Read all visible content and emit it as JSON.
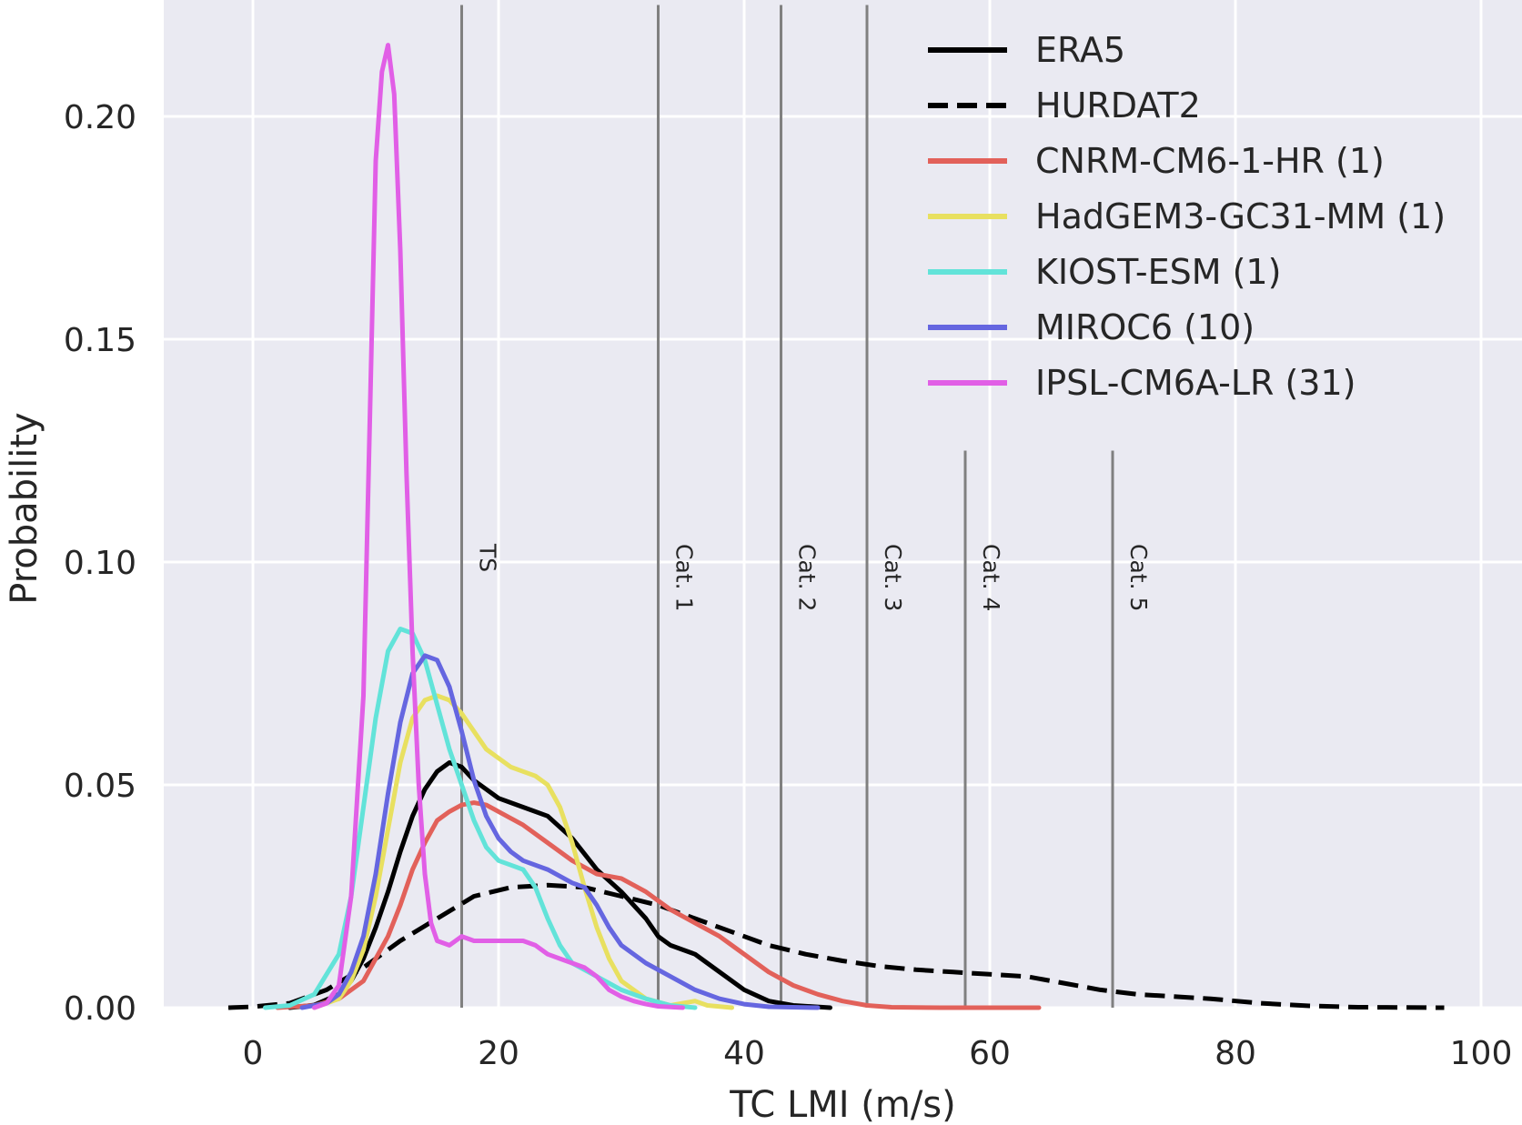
{
  "chart_data": {
    "type": "line",
    "title": "",
    "xlabel": "TC LMI (m/s)",
    "ylabel": "Probability",
    "xlim": [
      -7,
      102
    ],
    "ylim": [
      0,
      0.225
    ],
    "xticks": [
      0,
      20,
      40,
      60,
      80,
      100
    ],
    "xtick_labels": [
      "0",
      "20",
      "40",
      "60",
      "80",
      "100"
    ],
    "yticks": [
      0,
      0.05,
      0.1,
      0.15,
      0.2
    ],
    "ytick_labels": [
      "0.00",
      "0.05",
      "0.10",
      "0.15",
      "0.20"
    ],
    "grid": true,
    "legend_position": "top-right",
    "background": "#eaeaf2",
    "category_lines": [
      {
        "label": "TS",
        "x": 17,
        "top": 0.225
      },
      {
        "label": "Cat. 1",
        "x": 33,
        "top": 0.225
      },
      {
        "label": "Cat. 2",
        "x": 43,
        "top": 0.225
      },
      {
        "label": "Cat. 3",
        "x": 50,
        "top": 0.225
      },
      {
        "label": "Cat. 4",
        "x": 58,
        "top": 0.125
      },
      {
        "label": "Cat. 5",
        "x": 70,
        "top": 0.125
      }
    ],
    "category_line_color": "#808080",
    "series": [
      {
        "name": "ERA5",
        "color": "#000000",
        "dash": "solid",
        "points": [
          [
            3,
            0
          ],
          [
            5,
            0.0006
          ],
          [
            7,
            0.003
          ],
          [
            8,
            0.006
          ],
          [
            9,
            0.011
          ],
          [
            10,
            0.018
          ],
          [
            11,
            0.026
          ],
          [
            12,
            0.035
          ],
          [
            13,
            0.043
          ],
          [
            14,
            0.049
          ],
          [
            15,
            0.053
          ],
          [
            16,
            0.055
          ],
          [
            17,
            0.054
          ],
          [
            18,
            0.051
          ],
          [
            19,
            0.049
          ],
          [
            20,
            0.047
          ],
          [
            22,
            0.045
          ],
          [
            24,
            0.043
          ],
          [
            26,
            0.038
          ],
          [
            28,
            0.031
          ],
          [
            30,
            0.026
          ],
          [
            32,
            0.02
          ],
          [
            33,
            0.016
          ],
          [
            34,
            0.014
          ],
          [
            36,
            0.012
          ],
          [
            38,
            0.008
          ],
          [
            40,
            0.004
          ],
          [
            42,
            0.0015
          ],
          [
            44,
            0.0005
          ],
          [
            47,
            0
          ]
        ]
      },
      {
        "name": "HURDAT2",
        "color": "#000000",
        "dash": "dashed",
        "points": [
          [
            -2,
            0
          ],
          [
            0,
            0.0002
          ],
          [
            3,
            0.001
          ],
          [
            6,
            0.004
          ],
          [
            9,
            0.009
          ],
          [
            12,
            0.015
          ],
          [
            15,
            0.02
          ],
          [
            18,
            0.025
          ],
          [
            21,
            0.027
          ],
          [
            24,
            0.0275
          ],
          [
            27,
            0.027
          ],
          [
            30,
            0.025
          ],
          [
            33,
            0.023
          ],
          [
            36,
            0.02
          ],
          [
            39,
            0.017
          ],
          [
            42,
            0.014
          ],
          [
            45,
            0.012
          ],
          [
            48,
            0.0105
          ],
          [
            51,
            0.0093
          ],
          [
            54,
            0.0085
          ],
          [
            57,
            0.008
          ],
          [
            60,
            0.0075
          ],
          [
            63,
            0.007
          ],
          [
            66,
            0.0055
          ],
          [
            69,
            0.004
          ],
          [
            72,
            0.003
          ],
          [
            75,
            0.0025
          ],
          [
            78,
            0.002
          ],
          [
            82,
            0.001
          ],
          [
            86,
            0.0004
          ],
          [
            90,
            0.0001
          ],
          [
            97,
            0
          ]
        ]
      },
      {
        "name": "CNRM-CM6-1-HR (1)",
        "color": "#e2615a",
        "dash": "solid",
        "points": [
          [
            2,
            0
          ],
          [
            5,
            0.0005
          ],
          [
            7,
            0.002
          ],
          [
            9,
            0.006
          ],
          [
            11,
            0.016
          ],
          [
            12,
            0.023
          ],
          [
            13,
            0.031
          ],
          [
            14,
            0.037
          ],
          [
            15,
            0.042
          ],
          [
            16,
            0.044
          ],
          [
            17,
            0.0455
          ],
          [
            18,
            0.046
          ],
          [
            19,
            0.0455
          ],
          [
            20,
            0.044
          ],
          [
            22,
            0.041
          ],
          [
            24,
            0.037
          ],
          [
            26,
            0.033
          ],
          [
            28,
            0.03
          ],
          [
            30,
            0.029
          ],
          [
            32,
            0.026
          ],
          [
            34,
            0.022
          ],
          [
            36,
            0.019
          ],
          [
            38,
            0.016
          ],
          [
            40,
            0.012
          ],
          [
            42,
            0.008
          ],
          [
            44,
            0.005
          ],
          [
            46,
            0.003
          ],
          [
            48,
            0.0015
          ],
          [
            50,
            0.0005
          ],
          [
            52,
            0.0001
          ],
          [
            56,
            0
          ],
          [
            64,
            0
          ]
        ]
      },
      {
        "name": "HadGEM3-GC31-MM (1)",
        "color": "#e8e060",
        "dash": "solid",
        "points": [
          [
            5,
            0
          ],
          [
            7,
            0.002
          ],
          [
            8,
            0.006
          ],
          [
            9,
            0.013
          ],
          [
            10,
            0.025
          ],
          [
            11,
            0.04
          ],
          [
            12,
            0.055
          ],
          [
            13,
            0.065
          ],
          [
            14,
            0.069
          ],
          [
            15,
            0.07
          ],
          [
            16,
            0.069
          ],
          [
            17,
            0.066
          ],
          [
            18,
            0.062
          ],
          [
            19,
            0.058
          ],
          [
            20,
            0.056
          ],
          [
            21,
            0.054
          ],
          [
            22,
            0.053
          ],
          [
            23,
            0.052
          ],
          [
            24,
            0.05
          ],
          [
            25,
            0.045
          ],
          [
            26,
            0.037
          ],
          [
            27,
            0.027
          ],
          [
            28,
            0.018
          ],
          [
            29,
            0.011
          ],
          [
            30,
            0.006
          ],
          [
            32,
            0.002
          ],
          [
            34,
            0.0005
          ],
          [
            36,
            0.0015
          ],
          [
            37,
            0.0005
          ],
          [
            39,
            0
          ]
        ]
      },
      {
        "name": "KIOST-ESM (1)",
        "color": "#62e3d9",
        "dash": "solid",
        "points": [
          [
            1,
            0
          ],
          [
            3,
            0.0005
          ],
          [
            5,
            0.003
          ],
          [
            7,
            0.012
          ],
          [
            8,
            0.025
          ],
          [
            9,
            0.045
          ],
          [
            10,
            0.065
          ],
          [
            11,
            0.08
          ],
          [
            12,
            0.085
          ],
          [
            13,
            0.084
          ],
          [
            14,
            0.078
          ],
          [
            15,
            0.068
          ],
          [
            16,
            0.058
          ],
          [
            17,
            0.05
          ],
          [
            18,
            0.042
          ],
          [
            19,
            0.036
          ],
          [
            20,
            0.033
          ],
          [
            21,
            0.032
          ],
          [
            22,
            0.031
          ],
          [
            23,
            0.027
          ],
          [
            24,
            0.02
          ],
          [
            25,
            0.014
          ],
          [
            26,
            0.01
          ],
          [
            28,
            0.007
          ],
          [
            30,
            0.004
          ],
          [
            32,
            0.002
          ],
          [
            34,
            0.0005
          ],
          [
            36,
            0
          ]
        ]
      },
      {
        "name": "MIROC6 (10)",
        "color": "#6566e0",
        "dash": "solid",
        "points": [
          [
            4,
            0
          ],
          [
            6,
            0.001
          ],
          [
            7,
            0.003
          ],
          [
            8,
            0.008
          ],
          [
            9,
            0.016
          ],
          [
            10,
            0.03
          ],
          [
            11,
            0.048
          ],
          [
            12,
            0.064
          ],
          [
            13,
            0.075
          ],
          [
            14,
            0.079
          ],
          [
            15,
            0.078
          ],
          [
            16,
            0.072
          ],
          [
            17,
            0.062
          ],
          [
            18,
            0.051
          ],
          [
            19,
            0.043
          ],
          [
            20,
            0.038
          ],
          [
            21,
            0.035
          ],
          [
            22,
            0.033
          ],
          [
            24,
            0.031
          ],
          [
            26,
            0.028
          ],
          [
            27,
            0.027
          ],
          [
            28,
            0.023
          ],
          [
            29,
            0.018
          ],
          [
            30,
            0.014
          ],
          [
            32,
            0.01
          ],
          [
            34,
            0.007
          ],
          [
            36,
            0.004
          ],
          [
            38,
            0.002
          ],
          [
            40,
            0.0008
          ],
          [
            42,
            0.0002
          ],
          [
            46,
            0
          ]
        ]
      },
      {
        "name": "IPSL-CM6A-LR (31)",
        "color": "#e15fe6",
        "dash": "solid",
        "points": [
          [
            5,
            0
          ],
          [
            6,
            0.001
          ],
          [
            7,
            0.005
          ],
          [
            8,
            0.025
          ],
          [
            9,
            0.07
          ],
          [
            9.5,
            0.13
          ],
          [
            10,
            0.19
          ],
          [
            10.5,
            0.21
          ],
          [
            11,
            0.216
          ],
          [
            11.5,
            0.205
          ],
          [
            12,
            0.17
          ],
          [
            12.5,
            0.12
          ],
          [
            13,
            0.08
          ],
          [
            13.5,
            0.05
          ],
          [
            14,
            0.03
          ],
          [
            14.5,
            0.019
          ],
          [
            15,
            0.015
          ],
          [
            16,
            0.014
          ],
          [
            17,
            0.016
          ],
          [
            18,
            0.015
          ],
          [
            19,
            0.015
          ],
          [
            20,
            0.015
          ],
          [
            21,
            0.015
          ],
          [
            22,
            0.015
          ],
          [
            23,
            0.014
          ],
          [
            24,
            0.012
          ],
          [
            25,
            0.011
          ],
          [
            26,
            0.01
          ],
          [
            27,
            0.009
          ],
          [
            28,
            0.007
          ],
          [
            29,
            0.004
          ],
          [
            30,
            0.0025
          ],
          [
            31,
            0.0015
          ],
          [
            32,
            0.0008
          ],
          [
            33,
            0.0003
          ],
          [
            35,
            0
          ]
        ]
      }
    ]
  }
}
